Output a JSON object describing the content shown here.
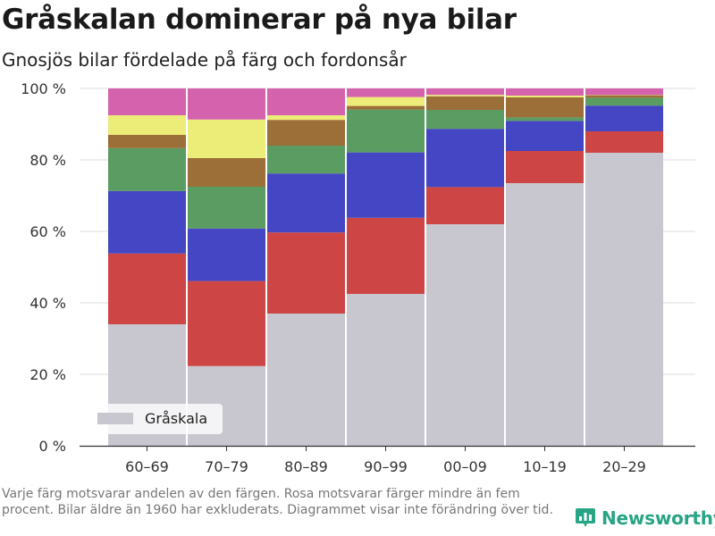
{
  "header": {
    "title": "Gråskalan dominerar på nya bilar",
    "subtitle": "Gnosjös bilar fördelade på färg och fordonsår"
  },
  "footer": {
    "note": "Varje färg motsvarar andelen av den färgen. Rosa motsvarar färger mindre än fem procent. Bilar äldre än 1960 har exkluderats. Diagrammet visar inte förändring över tid.",
    "brand": "Newsworthy",
    "brand_icon": "newsworthy-bar-chart-icon"
  },
  "colors": {
    "grayscale": "#c8c7cf",
    "red": "#cd4545",
    "blue": "#4446c3",
    "green": "#5a9c62",
    "brown": "#9c6e38",
    "yellow": "#ecec78",
    "pink": "#d562ad",
    "brand": "#27a585"
  },
  "chart_data": {
    "type": "bar",
    "stacked": true,
    "normalized": true,
    "title": "Gråskalan dominerar på nya bilar",
    "subtitle": "Gnosjös bilar fördelade på färg och fordonsår",
    "categories": [
      "60–69",
      "70–79",
      "80–89",
      "90–99",
      "00–09",
      "10–19",
      "20–29"
    ],
    "ylim": [
      0,
      100
    ],
    "yticks": [
      0,
      20,
      40,
      60,
      80,
      100
    ],
    "ytick_labels": [
      "0 %",
      "20 %",
      "40 %",
      "60 %",
      "80 %",
      "100 %"
    ],
    "grid": "horizontal",
    "legend": {
      "position": "bottom-left",
      "entries": [
        "Gråskala"
      ]
    },
    "series": [
      {
        "name": "Gråskala",
        "color": "#c8c7cf",
        "values": [
          34,
          22.3,
          37,
          42.5,
          62,
          73.5,
          82
        ]
      },
      {
        "color": "#cd4545",
        "values": [
          19.8,
          23.8,
          22.7,
          21.3,
          10.4,
          9,
          6
        ]
      },
      {
        "color": "#4446c3",
        "values": [
          17.5,
          14.7,
          16.5,
          18.3,
          16.3,
          8.4,
          7.2
        ]
      },
      {
        "color": "#5a9c62",
        "values": [
          12,
          11.7,
          7.8,
          12,
          5.3,
          1,
          2.2
        ]
      },
      {
        "color": "#9c6e38",
        "values": [
          3.7,
          8,
          7.2,
          1,
          3.8,
          5.6,
          0.7
        ]
      },
      {
        "color": "#ecec78",
        "values": [
          5.5,
          10.8,
          1.3,
          2.5,
          0.4,
          0.5,
          0.1
        ]
      },
      {
        "color": "#d562ad",
        "values": [
          7.5,
          8.7,
          7.5,
          2.4,
          1.8,
          2,
          1.8
        ]
      }
    ]
  }
}
